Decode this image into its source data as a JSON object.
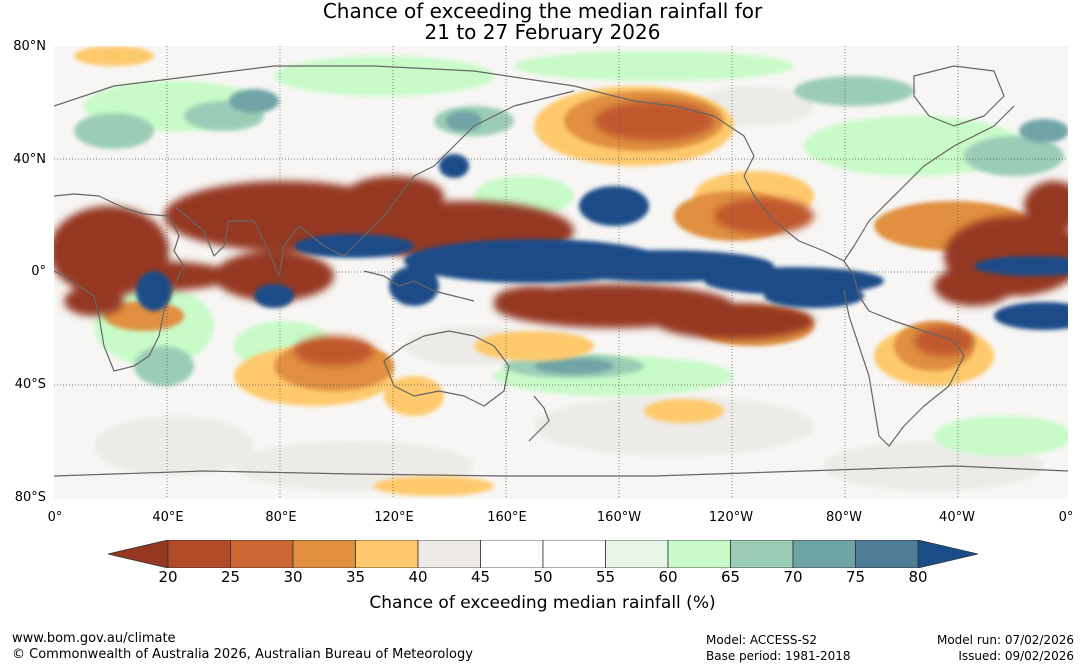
{
  "title": {
    "line1": "Chance of exceeding the median rainfall for",
    "line2": "21 to 27 February 2026"
  },
  "axes": {
    "lat_labels": [
      "80°N",
      "40°N",
      "0°",
      "40°S",
      "80°S"
    ],
    "lon_labels": [
      "0°",
      "40°E",
      "80°E",
      "120°E",
      "160°E",
      "160°W",
      "120°W",
      "80°W",
      "40°W",
      "0°"
    ]
  },
  "colorbar": {
    "label": "Chance of exceeding median rainfall (%)",
    "ticks": [
      "20",
      "25",
      "30",
      "35",
      "40",
      "45",
      "50",
      "55",
      "60",
      "65",
      "70",
      "75",
      "80"
    ],
    "colors": [
      "#953721",
      "#b04a28",
      "#cd6534",
      "#e0903f",
      "#fec96c",
      "#edeae6",
      "#ffffff",
      "#ffffff",
      "#e8f5e9",
      "#c8fbc8",
      "#9bcdb6",
      "#6fa4a6",
      "#4d7c97",
      "#1a4c88"
    ]
  },
  "footer": {
    "website": "www.bom.gov.au/climate",
    "copyright": "© Commonwealth of Australia 2026, Australian Bureau of Meteorology",
    "model": "Model: ACCESS-S2",
    "base_period": "Base period: 1981-2018",
    "model_run": "Model run: 07/02/2026",
    "issued": "Issued: 09/02/2026"
  },
  "map": {
    "colors": {
      "very_dry": "#953721",
      "dry": "#c0592e",
      "moderate_dry": "#e0903f",
      "light_dry": "#fec96c",
      "neutral": "#edeae6",
      "light_wet": "#c8fbc8",
      "wet": "#9bcdb6",
      "moderate_wet": "#6fa4a6",
      "very_wet": "#1a4c88",
      "coast": "#666666",
      "grid": "#555555"
    }
  }
}
